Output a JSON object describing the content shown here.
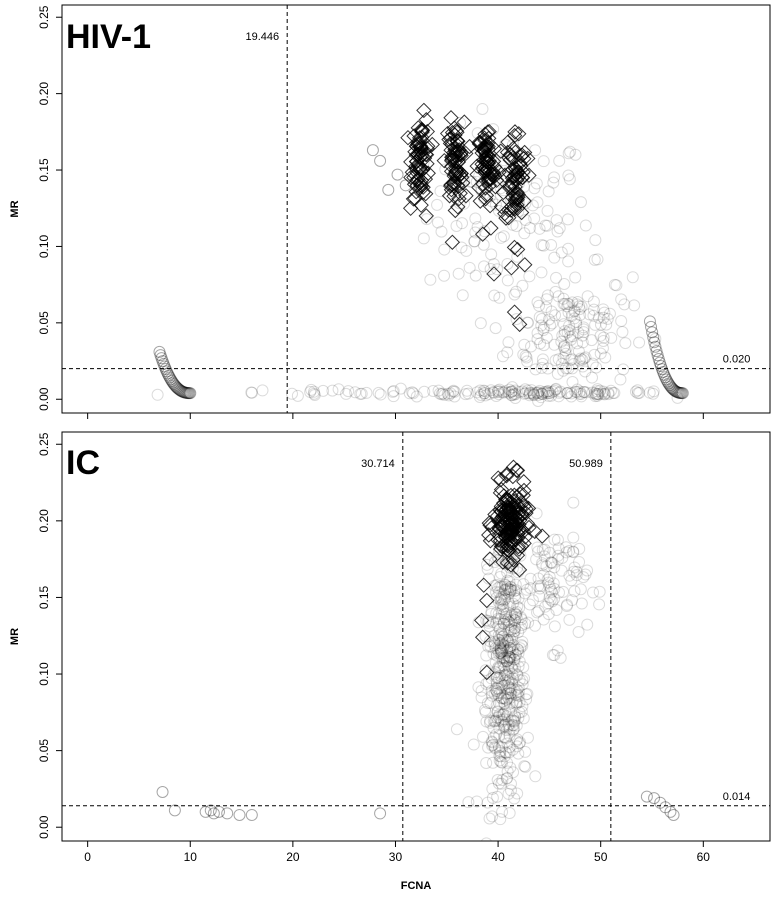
{
  "chart_data": [
    {
      "type": "scatter",
      "title": "HIV-1",
      "xlabel": "",
      "ylabel": "MR",
      "xlim": [
        -2.5,
        66.5
      ],
      "ylim": [
        -0.009,
        0.258
      ],
      "x_ticks": [
        0,
        10,
        20,
        30,
        40,
        50,
        60
      ],
      "y_ticks": [
        0.0,
        0.05,
        0.1,
        0.15,
        0.2,
        0.25
      ],
      "y_tick_labels": [
        "0.00",
        "0.05",
        "0.10",
        "0.15",
        "0.20",
        "0.25"
      ],
      "show_x_tick_labels": false,
      "thresholds": [
        {
          "axis": "x",
          "value": 19.446,
          "label": "19.446"
        },
        {
          "axis": "y",
          "value": 0.02,
          "label": "0.020"
        }
      ],
      "clusters": [
        {
          "marker": "diamond",
          "cx": 32.5,
          "cy": 0.158,
          "sx": 0.45,
          "sy": 0.013,
          "n": 70
        },
        {
          "marker": "diamond",
          "cx": 35.8,
          "cy": 0.155,
          "sx": 0.45,
          "sy": 0.013,
          "n": 70
        },
        {
          "marker": "diamond",
          "cx": 38.9,
          "cy": 0.152,
          "sx": 0.45,
          "sy": 0.014,
          "n": 70
        },
        {
          "marker": "diamond",
          "cx": 41.7,
          "cy": 0.145,
          "sx": 0.55,
          "sy": 0.016,
          "n": 70
        },
        {
          "marker": "circle",
          "cx": 41.0,
          "cy": 0.12,
          "sx": 4.0,
          "sy": 0.028,
          "n": 120
        },
        {
          "marker": "circle",
          "cx": 47.0,
          "cy": 0.045,
          "sx": 3.0,
          "sy": 0.02,
          "n": 160
        },
        {
          "marker": "circle",
          "cx": 44.0,
          "cy": 0.004,
          "sx": 6.0,
          "sy": 0.0012,
          "n": 120
        },
        {
          "marker": "circle",
          "cx": 28.0,
          "cy": 0.004,
          "sx": 8.0,
          "sy": 0.0012,
          "n": 40
        }
      ],
      "points": [
        {
          "marker": "diamond",
          "x": 33.0,
          "y": 0.12
        },
        {
          "marker": "diamond",
          "x": 32.5,
          "y": 0.127
        },
        {
          "marker": "diamond",
          "x": 38.5,
          "y": 0.108
        },
        {
          "marker": "diamond",
          "x": 39.3,
          "y": 0.112
        },
        {
          "marker": "diamond",
          "x": 39.6,
          "y": 0.082
        },
        {
          "marker": "diamond",
          "x": 41.3,
          "y": 0.086
        },
        {
          "marker": "diamond",
          "x": 42.6,
          "y": 0.088
        },
        {
          "marker": "diamond",
          "x": 41.6,
          "y": 0.057
        },
        {
          "marker": "diamond",
          "x": 42.1,
          "y": 0.049
        },
        {
          "marker": "diamond",
          "x": 41.9,
          "y": 0.098
        },
        {
          "marker": "circle",
          "x": 27.8,
          "y": 0.163
        },
        {
          "marker": "circle",
          "x": 28.5,
          "y": 0.156
        },
        {
          "marker": "circle",
          "x": 29.3,
          "y": 0.137
        },
        {
          "marker": "circle",
          "x": 30.2,
          "y": 0.147
        },
        {
          "marker": "circle",
          "x": 31.0,
          "y": 0.14
        }
      ],
      "arcs": [
        {
          "from": [
            7.0,
            0.031
          ],
          "to": [
            10.0,
            0.004
          ],
          "n": 30
        },
        {
          "from": [
            58.0,
            0.004
          ],
          "to": [
            54.8,
            0.051
          ],
          "n": 30
        }
      ]
    },
    {
      "type": "scatter",
      "title": "IC",
      "xlabel": "FCNA",
      "ylabel": "MR",
      "xlim": [
        -2.5,
        66.5
      ],
      "ylim": [
        -0.009,
        0.258
      ],
      "x_ticks": [
        0,
        10,
        20,
        30,
        40,
        50,
        60
      ],
      "x_tick_labels": [
        "0",
        "10",
        "20",
        "30",
        "40",
        "50",
        "60"
      ],
      "y_ticks": [
        0.0,
        0.05,
        0.1,
        0.15,
        0.2,
        0.25
      ],
      "y_tick_labels": [
        "0.00",
        "0.05",
        "0.10",
        "0.15",
        "0.20",
        "0.25"
      ],
      "show_x_tick_labels": true,
      "thresholds": [
        {
          "axis": "x",
          "value": 30.714,
          "label": "30.714"
        },
        {
          "axis": "x",
          "value": 50.989,
          "label": "50.989"
        },
        {
          "axis": "y",
          "value": 0.014,
          "label": "0.014"
        }
      ],
      "clusters": [
        {
          "marker": "diamond",
          "cx": 41.2,
          "cy": 0.198,
          "sx": 0.8,
          "sy": 0.012,
          "n": 160
        },
        {
          "marker": "circle",
          "cx": 40.8,
          "cy": 0.12,
          "sx": 0.9,
          "sy": 0.035,
          "n": 320
        },
        {
          "marker": "circle",
          "cx": 40.5,
          "cy": 0.06,
          "sx": 1.2,
          "sy": 0.025,
          "n": 120
        },
        {
          "marker": "circle",
          "cx": 45.5,
          "cy": 0.16,
          "sx": 1.6,
          "sy": 0.02,
          "n": 90
        }
      ],
      "points": [
        {
          "marker": "diamond",
          "x": 41.5,
          "y": 0.235
        },
        {
          "marker": "diamond",
          "x": 41.8,
          "y": 0.233
        },
        {
          "marker": "diamond",
          "x": 38.6,
          "y": 0.158
        },
        {
          "marker": "diamond",
          "x": 38.9,
          "y": 0.148
        },
        {
          "marker": "diamond",
          "x": 38.4,
          "y": 0.135
        },
        {
          "marker": "diamond",
          "x": 38.5,
          "y": 0.124
        },
        {
          "marker": "diamond",
          "x": 38.9,
          "y": 0.101
        },
        {
          "marker": "diamond",
          "x": 39.2,
          "y": 0.175
        },
        {
          "marker": "diamond",
          "x": 44.3,
          "y": 0.19
        },
        {
          "marker": "circle",
          "x": 7.3,
          "y": 0.023
        },
        {
          "marker": "circle",
          "x": 8.5,
          "y": 0.011
        },
        {
          "marker": "circle",
          "x": 11.5,
          "y": 0.01
        },
        {
          "marker": "circle",
          "x": 12.0,
          "y": 0.011
        },
        {
          "marker": "circle",
          "x": 12.3,
          "y": 0.009
        },
        {
          "marker": "circle",
          "x": 12.8,
          "y": 0.01
        },
        {
          "marker": "circle",
          "x": 13.6,
          "y": 0.009
        },
        {
          "marker": "circle",
          "x": 14.8,
          "y": 0.008
        },
        {
          "marker": "circle",
          "x": 16.0,
          "y": 0.008
        },
        {
          "marker": "circle",
          "x": 28.5,
          "y": 0.009
        },
        {
          "marker": "circle",
          "x": 54.5,
          "y": 0.02
        },
        {
          "marker": "circle",
          "x": 55.2,
          "y": 0.019
        },
        {
          "marker": "circle",
          "x": 55.8,
          "y": 0.016
        },
        {
          "marker": "circle",
          "x": 56.3,
          "y": 0.013
        },
        {
          "marker": "circle",
          "x": 56.8,
          "y": 0.01
        },
        {
          "marker": "circle",
          "x": 57.1,
          "y": 0.008
        }
      ],
      "arcs": []
    }
  ]
}
